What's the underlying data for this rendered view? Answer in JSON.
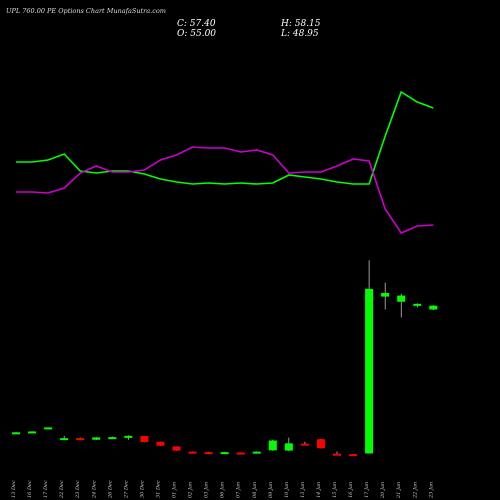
{
  "header": {
    "title": "UPL 760.00 PE Options Chart MunafaSutra.com",
    "close": "C: 57.40",
    "open": "O: 55.00",
    "high": "H: 58.15",
    "low": "L: 48.95"
  },
  "chart_data": {
    "type": "candlestick",
    "categories": [
      "13 Dec",
      "16 Dec",
      "17 Dec",
      "22 Dec",
      "23 Dec",
      "24 Dec",
      "26 Dec",
      "27 Dec",
      "30 Dec",
      "31 Dec",
      "01 Jan",
      "02 Jan",
      "03 Jan",
      "06 Jan",
      "07 Jan",
      "08 Jan",
      "09 Jan",
      "10 Jan",
      "13 Jan",
      "14 Jan",
      "15 Jan",
      "16 Jan",
      "17 Jan",
      "20 Jan",
      "21 Jan",
      "22 Jan",
      "23 Jan"
    ],
    "candles": [
      {
        "open": 4.4,
        "close": 4.55,
        "high": 4.7,
        "low": 4.2
      },
      {
        "open": 4.55,
        "close": 4.9,
        "high": 4.95,
        "low": 4.5
      },
      {
        "open": 6.1,
        "close": 6.45,
        "high": 6.5,
        "low": 6.05
      },
      {
        "open": 2.2,
        "close": 2.3,
        "high": 3.2,
        "low": 2.1
      },
      {
        "open": 2.3,
        "close": 1.7,
        "high": 2.5,
        "low": 1.5
      },
      {
        "open": 1.7,
        "close": 2.6,
        "high": 2.7,
        "low": 1.6
      },
      {
        "open": 2.2,
        "close": 2.7,
        "high": 2.9,
        "low": 2.1
      },
      {
        "open": 3.1,
        "close": 3.2,
        "high": 3.4,
        "low": 1.7
      },
      {
        "open": 3.15,
        "close": 0.8,
        "high": 3.2,
        "low": 0.7
      },
      {
        "open": 0.9,
        "close": -0.6,
        "high": 1.0,
        "low": -0.7
      },
      {
        "open": -0.9,
        "close": -2.5,
        "high": -0.8,
        "low": -2.6
      },
      {
        "open": -2.9,
        "close": -3.2,
        "high": -2.8,
        "low": -3.3
      },
      {
        "open": -3.1,
        "close": -3.3,
        "high": -3.0,
        "low": -3.4
      },
      {
        "open": -3.4,
        "close": -3.1,
        "high": -3.0,
        "low": -3.5
      },
      {
        "open": -3.25,
        "close": -3.4,
        "high": -3.2,
        "low": -3.5
      },
      {
        "open": -3.6,
        "close": -2.9,
        "high": -2.8,
        "low": -3.7
      },
      {
        "open": -2.4,
        "close": 1.4,
        "high": 1.7,
        "low": -2.6
      },
      {
        "open": -2.5,
        "close": 0.3,
        "high": 2.5,
        "low": -2.6
      },
      {
        "open": 0.2,
        "close": 0.1,
        "high": 0.9,
        "low": 0.0
      },
      {
        "open": 1.9,
        "close": -1.6,
        "high": 2.0,
        "low": -1.7
      },
      {
        "open": -3.7,
        "close": -4.0,
        "high": -2.8,
        "low": -4.1
      },
      {
        "open": -3.9,
        "close": -4.2,
        "high": -3.8,
        "low": -4.3
      },
      {
        "open": -3.6,
        "close": 60.0,
        "high": 71.0,
        "low": -3.7
      },
      {
        "open": 57.0,
        "close": 58.4,
        "high": 62.4,
        "low": 52.0
      },
      {
        "open": 55.0,
        "close": 57.4,
        "high": 58.15,
        "low": 48.95
      },
      {
        "open": 53.5,
        "close": 54.2,
        "high": 54.4,
        "low": 52.8
      },
      {
        "open": 52.0,
        "close": 53.5,
        "high": 53.7,
        "low": 51.8
      }
    ],
    "candles_fix_note_removed": true,
    "line_green": [
      162,
      162,
      160,
      154,
      171,
      173,
      171,
      171,
      174,
      179,
      182,
      184,
      183,
      184,
      183,
      184,
      183,
      175,
      177,
      179,
      182,
      184,
      184,
      136,
      92,
      102,
      108
    ],
    "line_magenta": [
      192,
      192,
      193,
      188,
      173,
      166,
      172,
      172,
      170,
      160,
      155,
      147,
      148,
      148,
      152,
      150,
      155,
      173,
      172,
      172,
      166,
      159,
      161,
      209,
      233,
      226,
      225
    ],
    "colors": {
      "up": "#00ff00",
      "down": "#ff0000",
      "wick": "#ffffff",
      "line_green": "#00ff00",
      "line_magenta": "#cc00cc",
      "background": "#000000"
    }
  }
}
